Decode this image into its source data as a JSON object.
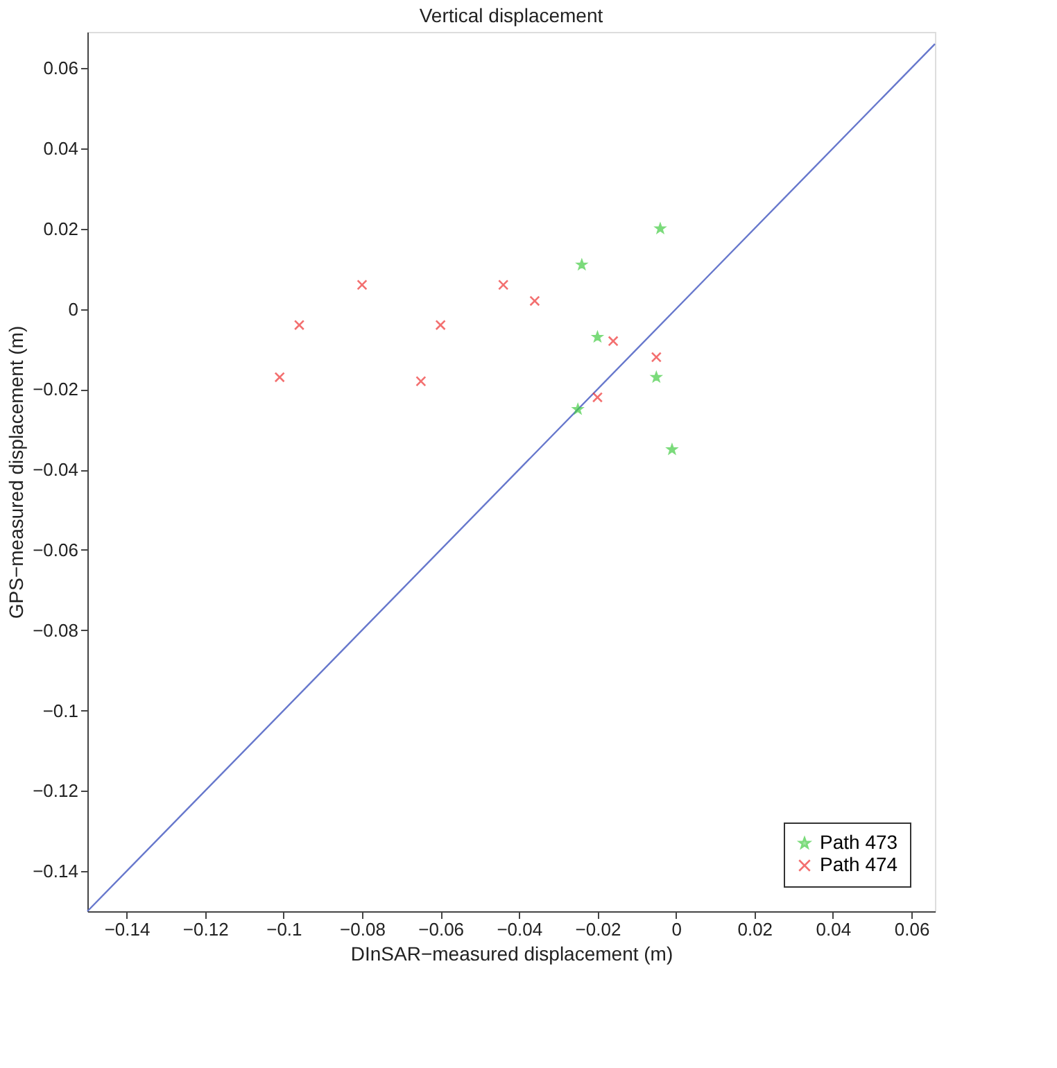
{
  "chart_data": {
    "type": "scatter",
    "title": "Vertical displacement",
    "xlabel": "DInSAR−measured displacement (m)",
    "ylabel": "GPS−measured displacement (m)",
    "xlim": [
      -0.15,
      0.066
    ],
    "ylim": [
      -0.15,
      0.069
    ],
    "xticks": [
      -0.14,
      -0.12,
      -0.1,
      -0.08,
      -0.06,
      -0.04,
      -0.02,
      0,
      0.02,
      0.04,
      0.06
    ],
    "yticks": [
      -0.14,
      -0.12,
      -0.1,
      -0.08,
      -0.06,
      -0.04,
      -0.02,
      0,
      0.02,
      0.04,
      0.06
    ],
    "grid": false,
    "legend": "bottom right",
    "series": [
      {
        "type": "line",
        "color": "#6677cc",
        "marker": "none",
        "line_style": "solid",
        "x": [
          -0.15,
          0.066
        ],
        "values": [
          -0.15,
          0.066
        ]
      },
      {
        "name": "Path 473",
        "color": "#44cc44",
        "marker": "star",
        "x": [
          -0.004,
          -0.024,
          -0.02,
          -0.005,
          -0.025,
          -0.001
        ],
        "values": [
          0.02,
          0.011,
          -0.007,
          -0.017,
          -0.025,
          -0.035
        ]
      },
      {
        "name": "Path 474",
        "color": "#ee3333",
        "marker": "cross",
        "x": [
          -0.101,
          -0.096,
          -0.08,
          -0.06,
          -0.065,
          -0.044,
          -0.036,
          -0.016,
          -0.02,
          -0.005
        ],
        "values": [
          -0.017,
          -0.004,
          0.006,
          -0.004,
          -0.018,
          0.006,
          0.002,
          -0.008,
          -0.022,
          -0.012
        ]
      }
    ]
  }
}
